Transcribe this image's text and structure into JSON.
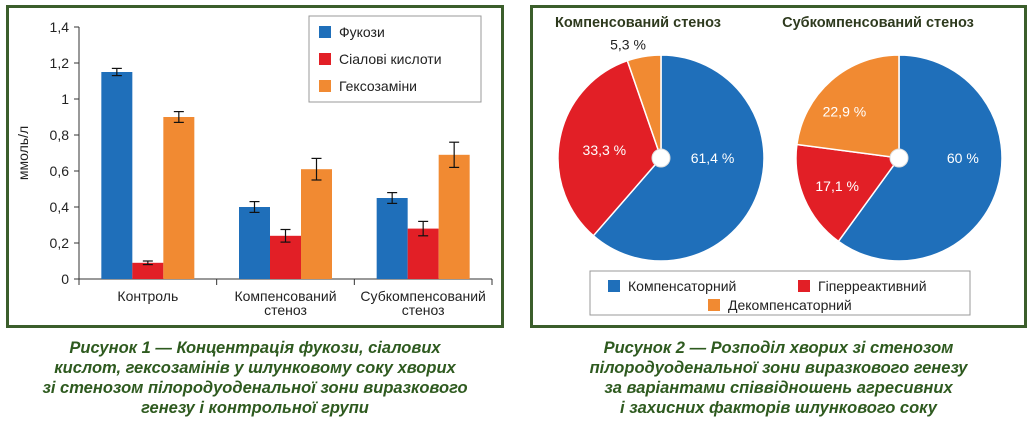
{
  "colors": {
    "frame": "#3b5e2b",
    "caption": "#2e5a1f",
    "blue": "#1f6fba",
    "red": "#e21f26",
    "orange": "#f18a32"
  },
  "chart_data": [
    {
      "type": "bar",
      "ylabel": "ммоль/л",
      "ylim": [
        0,
        1.4
      ],
      "yticks": [
        "0",
        "0,2",
        "0,4",
        "0,6",
        "0,8",
        "1",
        "1,2",
        "1,4"
      ],
      "categories": [
        [
          "Контроль"
        ],
        [
          "Компенсований",
          "стеноз"
        ],
        [
          "Субкомпенсований",
          "стеноз"
        ]
      ],
      "series": [
        {
          "name": "Фукози",
          "color": "#1f6fba",
          "values": [
            1.15,
            0.4,
            0.45
          ],
          "errors": [
            0.02,
            0.03,
            0.03
          ]
        },
        {
          "name": "Сіалові кислоти",
          "color": "#e21f26",
          "values": [
            0.09,
            0.24,
            0.28
          ],
          "errors": [
            0.01,
            0.035,
            0.04
          ]
        },
        {
          "name": "Гексозаміни",
          "color": "#f18a32",
          "values": [
            0.9,
            0.61,
            0.69
          ],
          "errors": [
            0.03,
            0.06,
            0.07
          ]
        }
      ],
      "legend": "top-right",
      "grid": false
    },
    {
      "type": "pie",
      "title": "Компенсований стеноз",
      "slices": [
        {
          "name": "Компенсаторний",
          "value": 61.4,
          "label": "61,4 %",
          "color": "#1f6fba"
        },
        {
          "name": "Гіперреактивний",
          "value": 33.3,
          "label": "33,3 %",
          "color": "#e21f26"
        },
        {
          "name": "Декомпенсаторний",
          "value": 5.3,
          "label": "5,3 %",
          "color": "#f18a32"
        }
      ]
    },
    {
      "type": "pie",
      "title": "Субкомпенсований стеноз",
      "slices": [
        {
          "name": "Компенсаторний",
          "value": 60,
          "label": "60 %",
          "color": "#1f6fba"
        },
        {
          "name": "Гіперреактивний",
          "value": 17.1,
          "label": "17,1 %",
          "color": "#e21f26"
        },
        {
          "name": "Декомпенсаторний",
          "value": 22.9,
          "label": "22,9 %",
          "color": "#f18a32"
        }
      ]
    }
  ],
  "pie_legend": [
    {
      "name": "Компенсаторний",
      "color": "#1f6fba"
    },
    {
      "name": "Гіперреактивний",
      "color": "#e21f26"
    },
    {
      "name": "Декомпенсаторний",
      "color": "#f18a32"
    }
  ],
  "captions": {
    "left": [
      "Рисунок 1 — Концентрація фукози, сіалових",
      "кислот, гексозамінів у шлунковому соку хворих",
      "зі стенозом пілородуоденальної зони виразкового",
      "генезу і контрольної групи"
    ],
    "right": [
      "Рисунок 2 — Розподіл хворих зі стенозом",
      "пілородуоденальної зони виразкового генезу",
      "за варіантами співвідношень агресивних",
      "і захисних факторів шлункового соку"
    ]
  }
}
